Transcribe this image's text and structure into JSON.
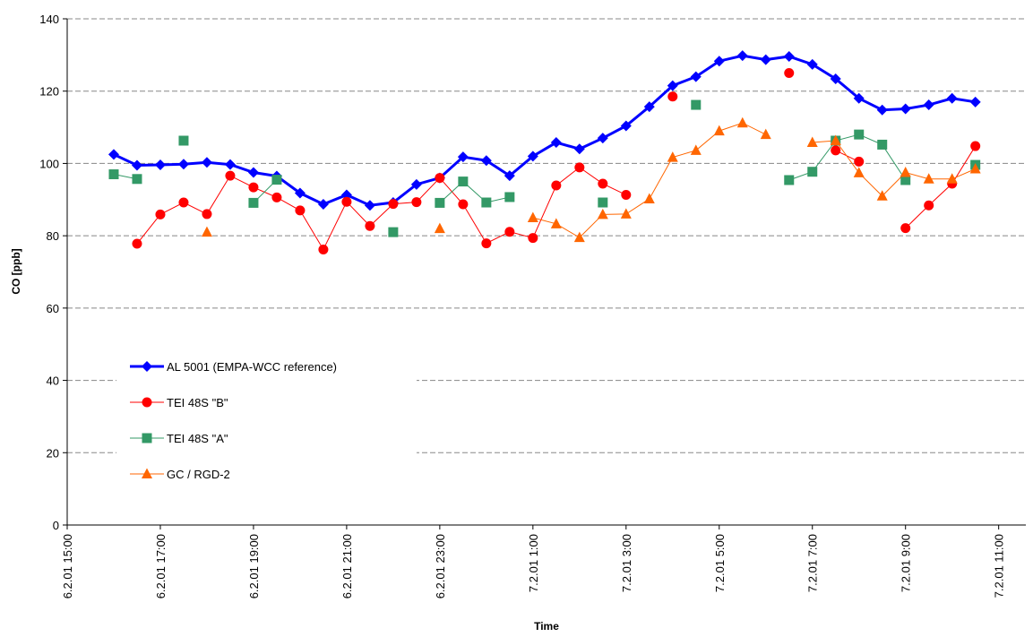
{
  "chart_data": {
    "type": "line",
    "xlabel": "Time",
    "ylabel": "CO [ppb]",
    "x": [
      "6.2.01 16:00",
      "6.2.01 16:30",
      "6.2.01 17:00",
      "6.2.01 17:30",
      "6.2.01 18:00",
      "6.2.01 18:30",
      "6.2.01 19:00",
      "6.2.01 19:30",
      "6.2.01 20:00",
      "6.2.01 20:30",
      "6.2.01 21:00",
      "6.2.01 21:30",
      "6.2.01 22:00",
      "6.2.01 22:30",
      "6.2.01 23:00",
      "6.2.01 23:30",
      "7.2.01 0:00",
      "7.2.01 0:30",
      "7.2.01 1:00",
      "7.2.01 1:30",
      "7.2.01 2:00",
      "7.2.01 2:30",
      "7.2.01 3:00",
      "7.2.01 3:30",
      "7.2.01 4:00",
      "7.2.01 4:30",
      "7.2.01 5:00",
      "7.2.01 5:30",
      "7.2.01 6:00",
      "7.2.01 6:30",
      "7.2.01 7:00",
      "7.2.01 7:30",
      "7.2.01 8:00",
      "7.2.01 8:30",
      "7.2.01 9:00",
      "7.2.01 9:30",
      "7.2.01 10:00",
      "7.2.01 10:30"
    ],
    "series": [
      {
        "name": "AL 5001 (EMPA-WCC reference)",
        "color": "#0000ff",
        "marker": "diamond",
        "line_width": 3,
        "values": [
          102.5,
          99.5,
          99.6,
          99.8,
          100.3,
          99.7,
          97.5,
          96.5,
          91.8,
          88.7,
          91.3,
          88.4,
          89.2,
          94.2,
          96,
          101.8,
          100.8,
          96.6,
          102,
          105.8,
          104,
          107,
          110.4,
          115.7,
          121.5,
          124,
          128.3,
          129.8,
          128.7,
          129.6,
          127.4,
          123.4,
          118,
          114.8,
          115.1,
          116.2,
          118,
          117
        ]
      },
      {
        "name": "TEI 48S \"B\"",
        "color": "#ff0000",
        "marker": "circle",
        "line_width": 1,
        "values": [
          null,
          77.8,
          85.9,
          89.2,
          86,
          96.6,
          93.4,
          90.6,
          87,
          76.2,
          89.4,
          82.7,
          88.8,
          89.3,
          96,
          88.7,
          77.9,
          81.1,
          79.4,
          93.9,
          98.9,
          94.4,
          91.3,
          null,
          118.5,
          null,
          null,
          null,
          null,
          125,
          null,
          103.6,
          100.5,
          null,
          82.1,
          88.4,
          94.4,
          104.8
        ]
      },
      {
        "name": "TEI 48S \"A\"",
        "color": "#339966",
        "marker": "square",
        "line_width": 1,
        "values": [
          97,
          95.7,
          null,
          106.3,
          null,
          null,
          89.1,
          95.5,
          null,
          null,
          null,
          null,
          81,
          null,
          89.1,
          95,
          89.2,
          90.7,
          null,
          null,
          null,
          89.2,
          null,
          null,
          null,
          116.2,
          null,
          null,
          null,
          95.4,
          97.7,
          106.3,
          108,
          105.2,
          95.4,
          null,
          null,
          99.6
        ]
      },
      {
        "name": "GC / RGD-2",
        "color": "#ff6600",
        "marker": "triangle",
        "line_width": 1,
        "values": [
          null,
          null,
          null,
          null,
          81,
          null,
          null,
          null,
          null,
          null,
          null,
          null,
          null,
          null,
          82,
          null,
          null,
          null,
          85,
          83.3,
          79.5,
          85.9,
          86,
          90.2,
          101.7,
          103.6,
          109,
          111.2,
          108,
          null,
          105.8,
          106.3,
          97.4,
          91,
          97.5,
          95.7,
          95.7,
          98.5
        ]
      }
    ],
    "xlim": [
      "6.2.01 15:00",
      "7.2.01 11:35"
    ],
    "xticks": [
      "6.2.01 15:00",
      "6.2.01 17:00",
      "6.2.01 19:00",
      "6.2.01 21:00",
      "6.2.01 23:00",
      "7.2.01 1:00",
      "7.2.01 3:00",
      "7.2.01 5:00",
      "7.2.01 7:00",
      "7.2.01 9:00",
      "7.2.01 11:00"
    ],
    "ylim": [
      0,
      140
    ],
    "yticks": [
      0,
      20,
      40,
      60,
      80,
      100,
      120,
      140
    ],
    "grid": true,
    "legend": "lower left"
  }
}
